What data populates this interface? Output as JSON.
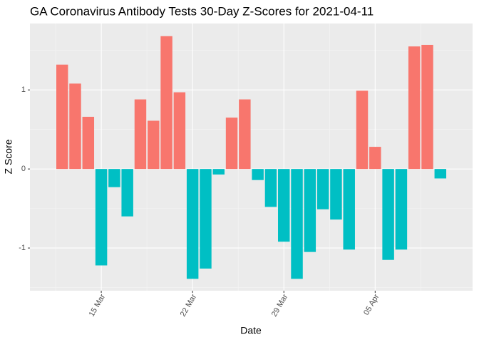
{
  "chart_data": {
    "type": "bar",
    "title": "GA Coronavirus Antibody Tests 30-Day Z-Scores for 2021-04-11",
    "x_label": "Date",
    "y_label": "Z Score",
    "categories": [
      null,
      null,
      null,
      "15 Mar",
      null,
      null,
      null,
      null,
      null,
      null,
      "22 Mar",
      null,
      null,
      null,
      null,
      null,
      null,
      "29 Mar",
      null,
      null,
      null,
      null,
      null,
      null,
      "05 Apr",
      null,
      null,
      null,
      null,
      null
    ],
    "values": [
      1.32,
      1.08,
      0.66,
      -1.22,
      -0.23,
      -0.6,
      0.88,
      0.61,
      1.68,
      0.97,
      -1.39,
      -1.26,
      -0.07,
      0.65,
      0.88,
      -0.14,
      -0.48,
      -0.92,
      -1.39,
      -1.05,
      -0.51,
      -0.64,
      -1.02,
      0.99,
      0.28,
      -1.15,
      -1.02,
      1.55,
      1.57,
      -0.12
    ],
    "positive_color": "#F8766D",
    "negative_color": "#00BFC4",
    "ylim": [
      -1.54,
      1.84
    ],
    "yticks": [
      -1,
      0,
      1
    ],
    "grid": true
  }
}
